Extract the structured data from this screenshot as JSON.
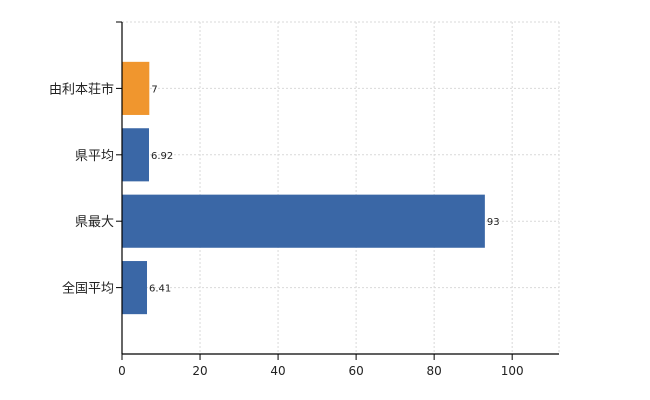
{
  "chart_data": {
    "type": "bar",
    "orientation": "horizontal",
    "categories": [
      "由利本荘市",
      "県平均",
      "県最大",
      "全国平均"
    ],
    "values": [
      7,
      6.92,
      93,
      6.41
    ],
    "value_labels": [
      "7",
      "6.92",
      "93",
      "6.41"
    ],
    "bar_colors": [
      "#f0962e",
      "#3a67a6",
      "#3a67a6",
      "#3a67a6"
    ],
    "title": "",
    "xlabel": "",
    "ylabel": "",
    "xlim": [
      0,
      112
    ],
    "x_ticks": [
      0,
      20,
      40,
      60,
      80,
      100
    ],
    "grid": true
  }
}
